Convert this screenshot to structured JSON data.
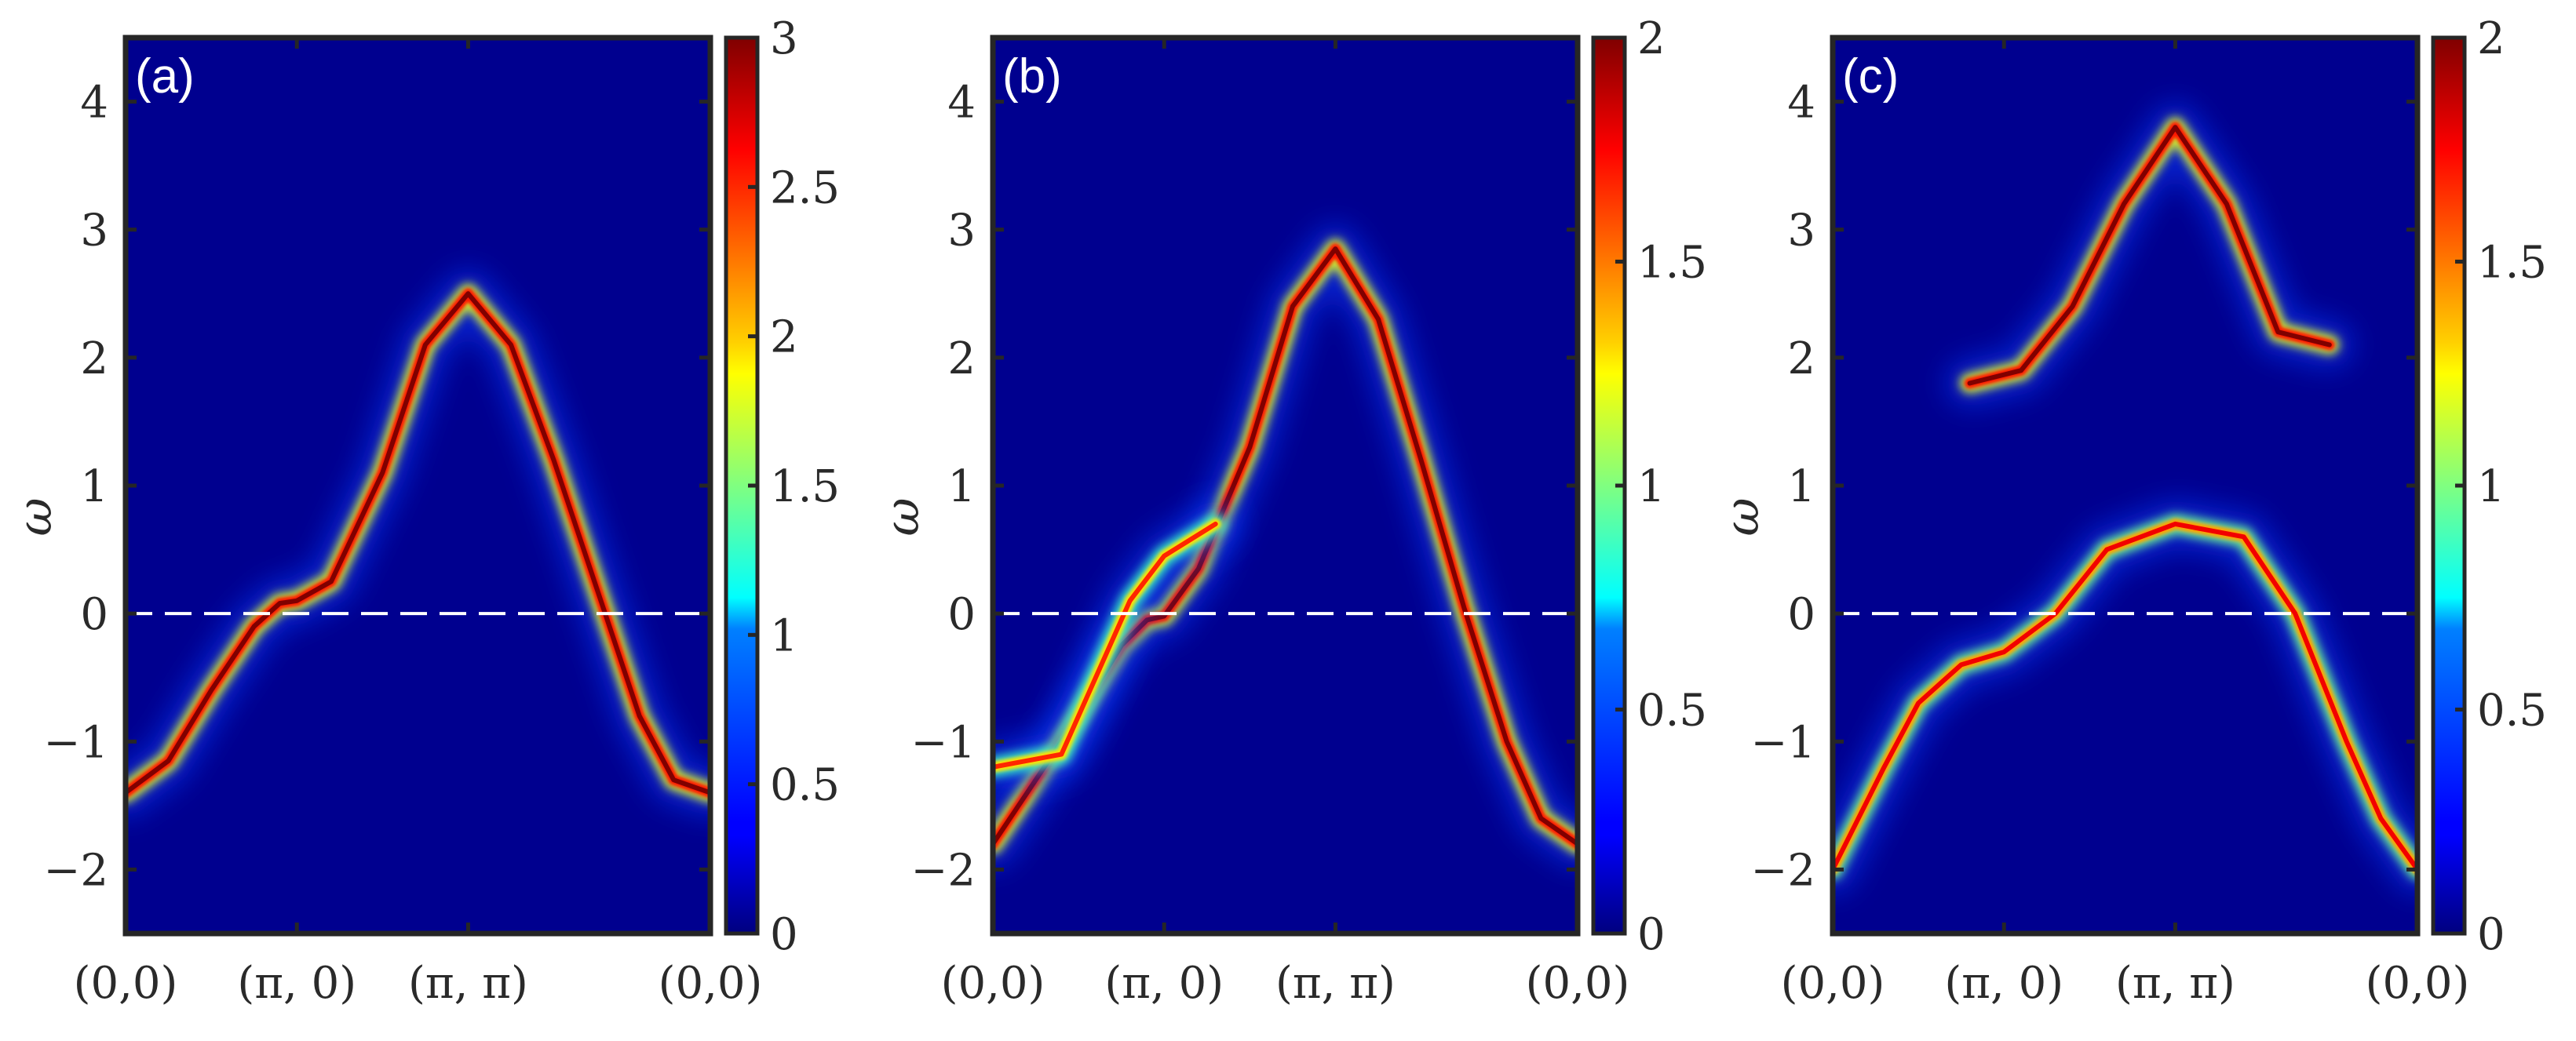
{
  "figure": {
    "description_free": true
  },
  "chart_data": [
    {
      "type": "heatmap",
      "panel_label": "(a)",
      "ylabel": "ω",
      "xlabel": "",
      "x_ticks": [
        "(0,0)",
        "(π, 0)",
        "(π, π)",
        "(0,0)"
      ],
      "x_tick_positions": [
        0,
        1,
        2,
        3.414
      ],
      "y_ticks": [
        "−2",
        "−1",
        "0",
        "1",
        "2",
        "3",
        "4"
      ],
      "y_tick_values": [
        -2,
        -1,
        0,
        1,
        2,
        3,
        4
      ],
      "ylim": [
        -2.5,
        4.5
      ],
      "fermi_level": 0,
      "colorbar": {
        "min": 0,
        "max": 3,
        "ticks": [
          "0",
          "0.5",
          "1",
          "1.5",
          "2",
          "2.5",
          "3"
        ],
        "tick_values": [
          0,
          0.5,
          1,
          1.5,
          2,
          2.5,
          3
        ]
      },
      "bands": [
        {
          "name": "main band",
          "points": [
            [
              0,
              -1.4
            ],
            [
              0.25,
              -1.15
            ],
            [
              0.5,
              -0.6
            ],
            [
              0.75,
              -0.1
            ],
            [
              0.9,
              0.08
            ],
            [
              1.0,
              0.1
            ],
            [
              1.2,
              0.25
            ],
            [
              1.5,
              1.1
            ],
            [
              1.75,
              2.1
            ],
            [
              2.0,
              2.5
            ],
            [
              2.25,
              2.1
            ],
            [
              2.5,
              1.2
            ],
            [
              2.75,
              0.2
            ],
            [
              3.0,
              -0.8
            ],
            [
              3.2,
              -1.3
            ],
            [
              3.414,
              -1.4
            ]
          ],
          "intensity": 3
        }
      ]
    },
    {
      "type": "heatmap",
      "panel_label": "(b)",
      "ylabel": "ω",
      "xlabel": "",
      "x_ticks": [
        "(0,0)",
        "(π, 0)",
        "(π, π)",
        "(0,0)"
      ],
      "x_tick_positions": [
        0,
        1,
        2,
        3.414
      ],
      "y_ticks": [
        "−2",
        "−1",
        "0",
        "1",
        "2",
        "3",
        "4"
      ],
      "y_tick_values": [
        -2,
        -1,
        0,
        1,
        2,
        3,
        4
      ],
      "ylim": [
        -2.5,
        4.5
      ],
      "fermi_level": 0,
      "colorbar": {
        "min": 0,
        "max": 2,
        "ticks": [
          "0",
          "0.5",
          "1",
          "1.5",
          "2"
        ],
        "tick_values": [
          0,
          0.5,
          1,
          1.5,
          2
        ]
      },
      "bands": [
        {
          "name": "main band",
          "points": [
            [
              0,
              -1.8
            ],
            [
              0.25,
              -1.3
            ],
            [
              0.5,
              -0.8
            ],
            [
              0.75,
              -0.25
            ],
            [
              0.9,
              -0.05
            ],
            [
              1.0,
              -0.02
            ],
            [
              1.2,
              0.35
            ],
            [
              1.5,
              1.3
            ],
            [
              1.75,
              2.4
            ],
            [
              2.0,
              2.85
            ],
            [
              2.25,
              2.3
            ],
            [
              2.5,
              1.2
            ],
            [
              2.75,
              0.05
            ],
            [
              3.0,
              -1.0
            ],
            [
              3.2,
              -1.6
            ],
            [
              3.414,
              -1.8
            ]
          ],
          "intensity": 2
        },
        {
          "name": "shadow band",
          "points": [
            [
              0,
              -1.2
            ],
            [
              0.4,
              -1.1
            ],
            [
              0.8,
              0.1
            ],
            [
              1.0,
              0.45
            ],
            [
              1.3,
              0.7
            ]
          ],
          "intensity": 0.7
        }
      ]
    },
    {
      "type": "heatmap",
      "panel_label": "(c)",
      "ylabel": "ω",
      "xlabel": "",
      "x_ticks": [
        "(0,0)",
        "(π, 0)",
        "(π, π)",
        "(0,0)"
      ],
      "x_tick_positions": [
        0,
        1,
        2,
        3.414
      ],
      "y_ticks": [
        "−2",
        "−1",
        "0",
        "1",
        "2",
        "3",
        "4"
      ],
      "y_tick_values": [
        -2,
        -1,
        0,
        1,
        2,
        3,
        4
      ],
      "ylim": [
        -2.5,
        4.5
      ],
      "fermi_level": 0,
      "colorbar": {
        "min": 0,
        "max": 2,
        "ticks": [
          "0",
          "0.5",
          "1",
          "1.5",
          "2"
        ],
        "tick_values": [
          0,
          0.5,
          1,
          1.5,
          2
        ]
      },
      "bands": [
        {
          "name": "upper band",
          "points": [
            [
              0.8,
              1.8
            ],
            [
              1.1,
              1.9
            ],
            [
              1.4,
              2.4
            ],
            [
              1.7,
              3.2
            ],
            [
              2.0,
              3.8
            ],
            [
              2.3,
              3.2
            ],
            [
              2.6,
              2.2
            ],
            [
              2.9,
              2.1
            ]
          ],
          "intensity": 2
        },
        {
          "name": "lower band",
          "points": [
            [
              0,
              -2.0
            ],
            [
              0.3,
              -1.2
            ],
            [
              0.5,
              -0.7
            ],
            [
              0.75,
              -0.4
            ],
            [
              1.0,
              -0.3
            ],
            [
              1.3,
              0.0
            ],
            [
              1.6,
              0.5
            ],
            [
              2.0,
              0.7
            ],
            [
              2.4,
              0.6
            ],
            [
              2.7,
              0.0
            ],
            [
              3.0,
              -1.0
            ],
            [
              3.2,
              -1.6
            ],
            [
              3.414,
              -2.0
            ]
          ],
          "intensity": 1.1
        }
      ]
    }
  ]
}
